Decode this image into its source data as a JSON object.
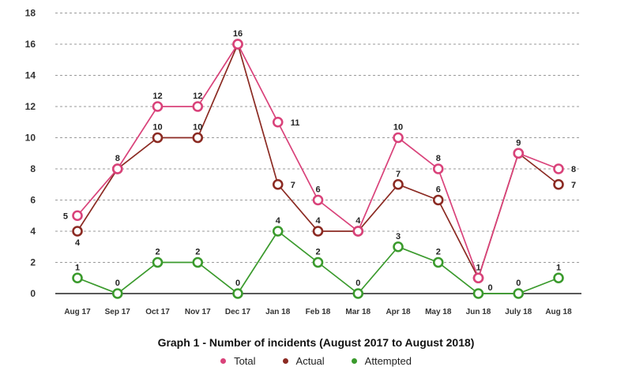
{
  "colors": {
    "total": "#d9427a",
    "actual": "#8b2a22",
    "attempted": "#3a9a2c"
  },
  "chart_data": {
    "type": "line",
    "title": "Graph 1 - Number of incidents (August 2017 to August 2018)",
    "categories": [
      "Aug 17",
      "Sep 17",
      "Oct 17",
      "Nov 17",
      "Dec 17",
      "Jan 18",
      "Feb 18",
      "Mar 18",
      "Apr 18",
      "May 18",
      "Jun 18",
      "July 18",
      "Aug 18"
    ],
    "y_ticks": [
      "0",
      "2",
      "4",
      "6",
      "8",
      "10",
      "12",
      "14",
      "16",
      "18"
    ],
    "ylim": [
      0,
      18
    ],
    "grid": "horizontal dashed",
    "legend_position": "bottom",
    "series": [
      {
        "name": "Total",
        "values": [
          5,
          8,
          12,
          12,
          16,
          11,
          6,
          4,
          10,
          8,
          1,
          9,
          8
        ]
      },
      {
        "name": "Actual",
        "values": [
          4,
          8,
          10,
          10,
          16,
          7,
          4,
          4,
          7,
          6,
          1,
          9,
          7
        ]
      },
      {
        "name": "Attempted",
        "values": [
          1,
          0,
          2,
          2,
          0,
          4,
          2,
          0,
          3,
          2,
          0,
          0,
          1
        ]
      }
    ],
    "data_labels": {
      "total": [
        "5",
        "8",
        "12",
        "12",
        "16",
        "11",
        "6",
        "4",
        "10",
        "8",
        "1",
        "9",
        "8"
      ],
      "actual": [
        "4",
        "",
        "10",
        "10",
        "",
        "7",
        "4",
        "",
        "7",
        "6",
        "",
        "",
        "7"
      ],
      "attempted": [
        "1",
        "0",
        "2",
        "2",
        "0",
        "4",
        "2",
        "0",
        "3",
        "2",
        "0",
        "0",
        "1"
      ]
    }
  }
}
